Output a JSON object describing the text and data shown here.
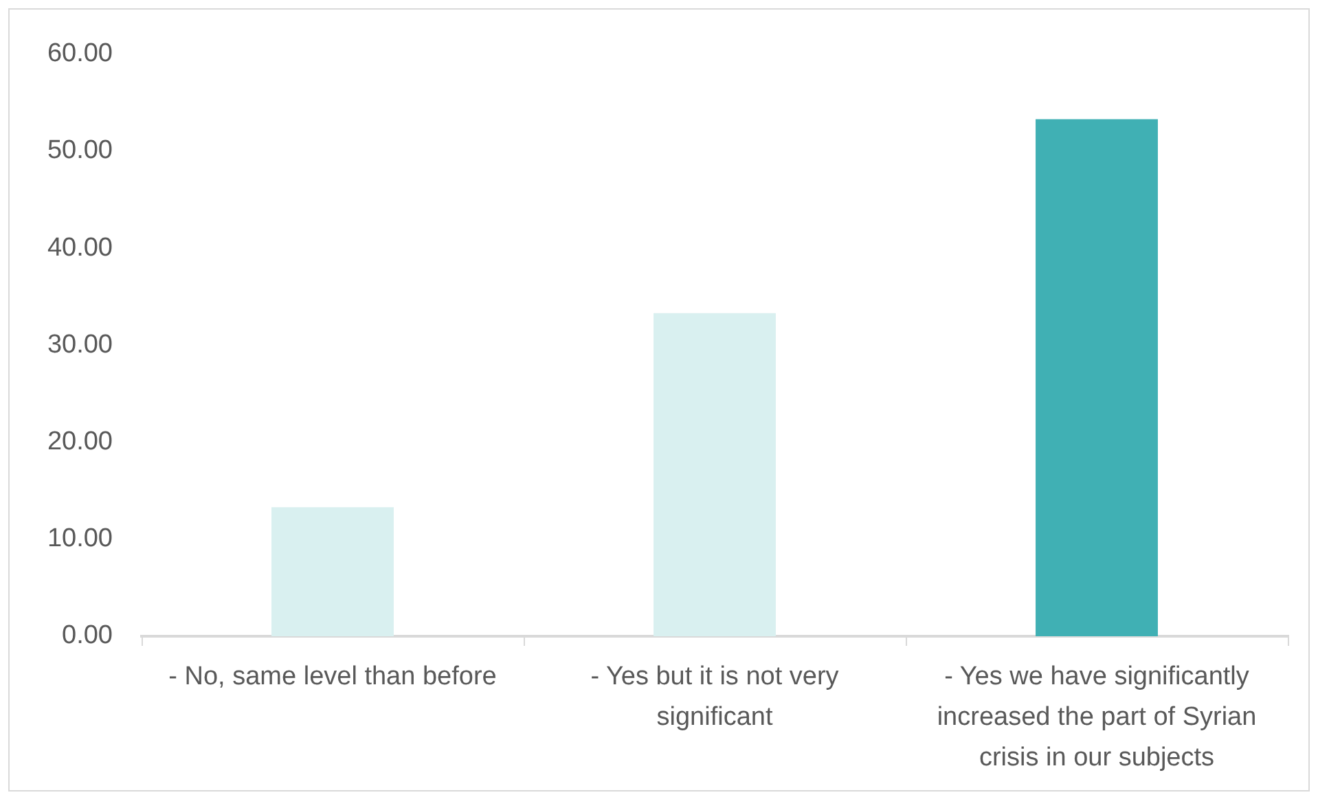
{
  "chart_data": {
    "type": "bar",
    "categories": [
      "- No, same level than before",
      "- Yes but it is not very significant",
      "- Yes we have significantly increased the part of Syrian crisis in our subjects"
    ],
    "values": [
      13.3,
      33.3,
      53.3
    ],
    "colors": [
      "#d9f0f0",
      "#d9f0f0",
      "#40b0b4"
    ],
    "ylim": [
      0,
      60
    ],
    "yticks": [
      {
        "value": 0,
        "label": "0.00"
      },
      {
        "value": 10,
        "label": "10.00"
      },
      {
        "value": 20,
        "label": "20.00"
      },
      {
        "value": 30,
        "label": "30.00"
      },
      {
        "value": 40,
        "label": "40.00"
      },
      {
        "value": 50,
        "label": "50.00"
      },
      {
        "value": 60,
        "label": "60.00"
      }
    ],
    "grid": false,
    "legend": false
  }
}
